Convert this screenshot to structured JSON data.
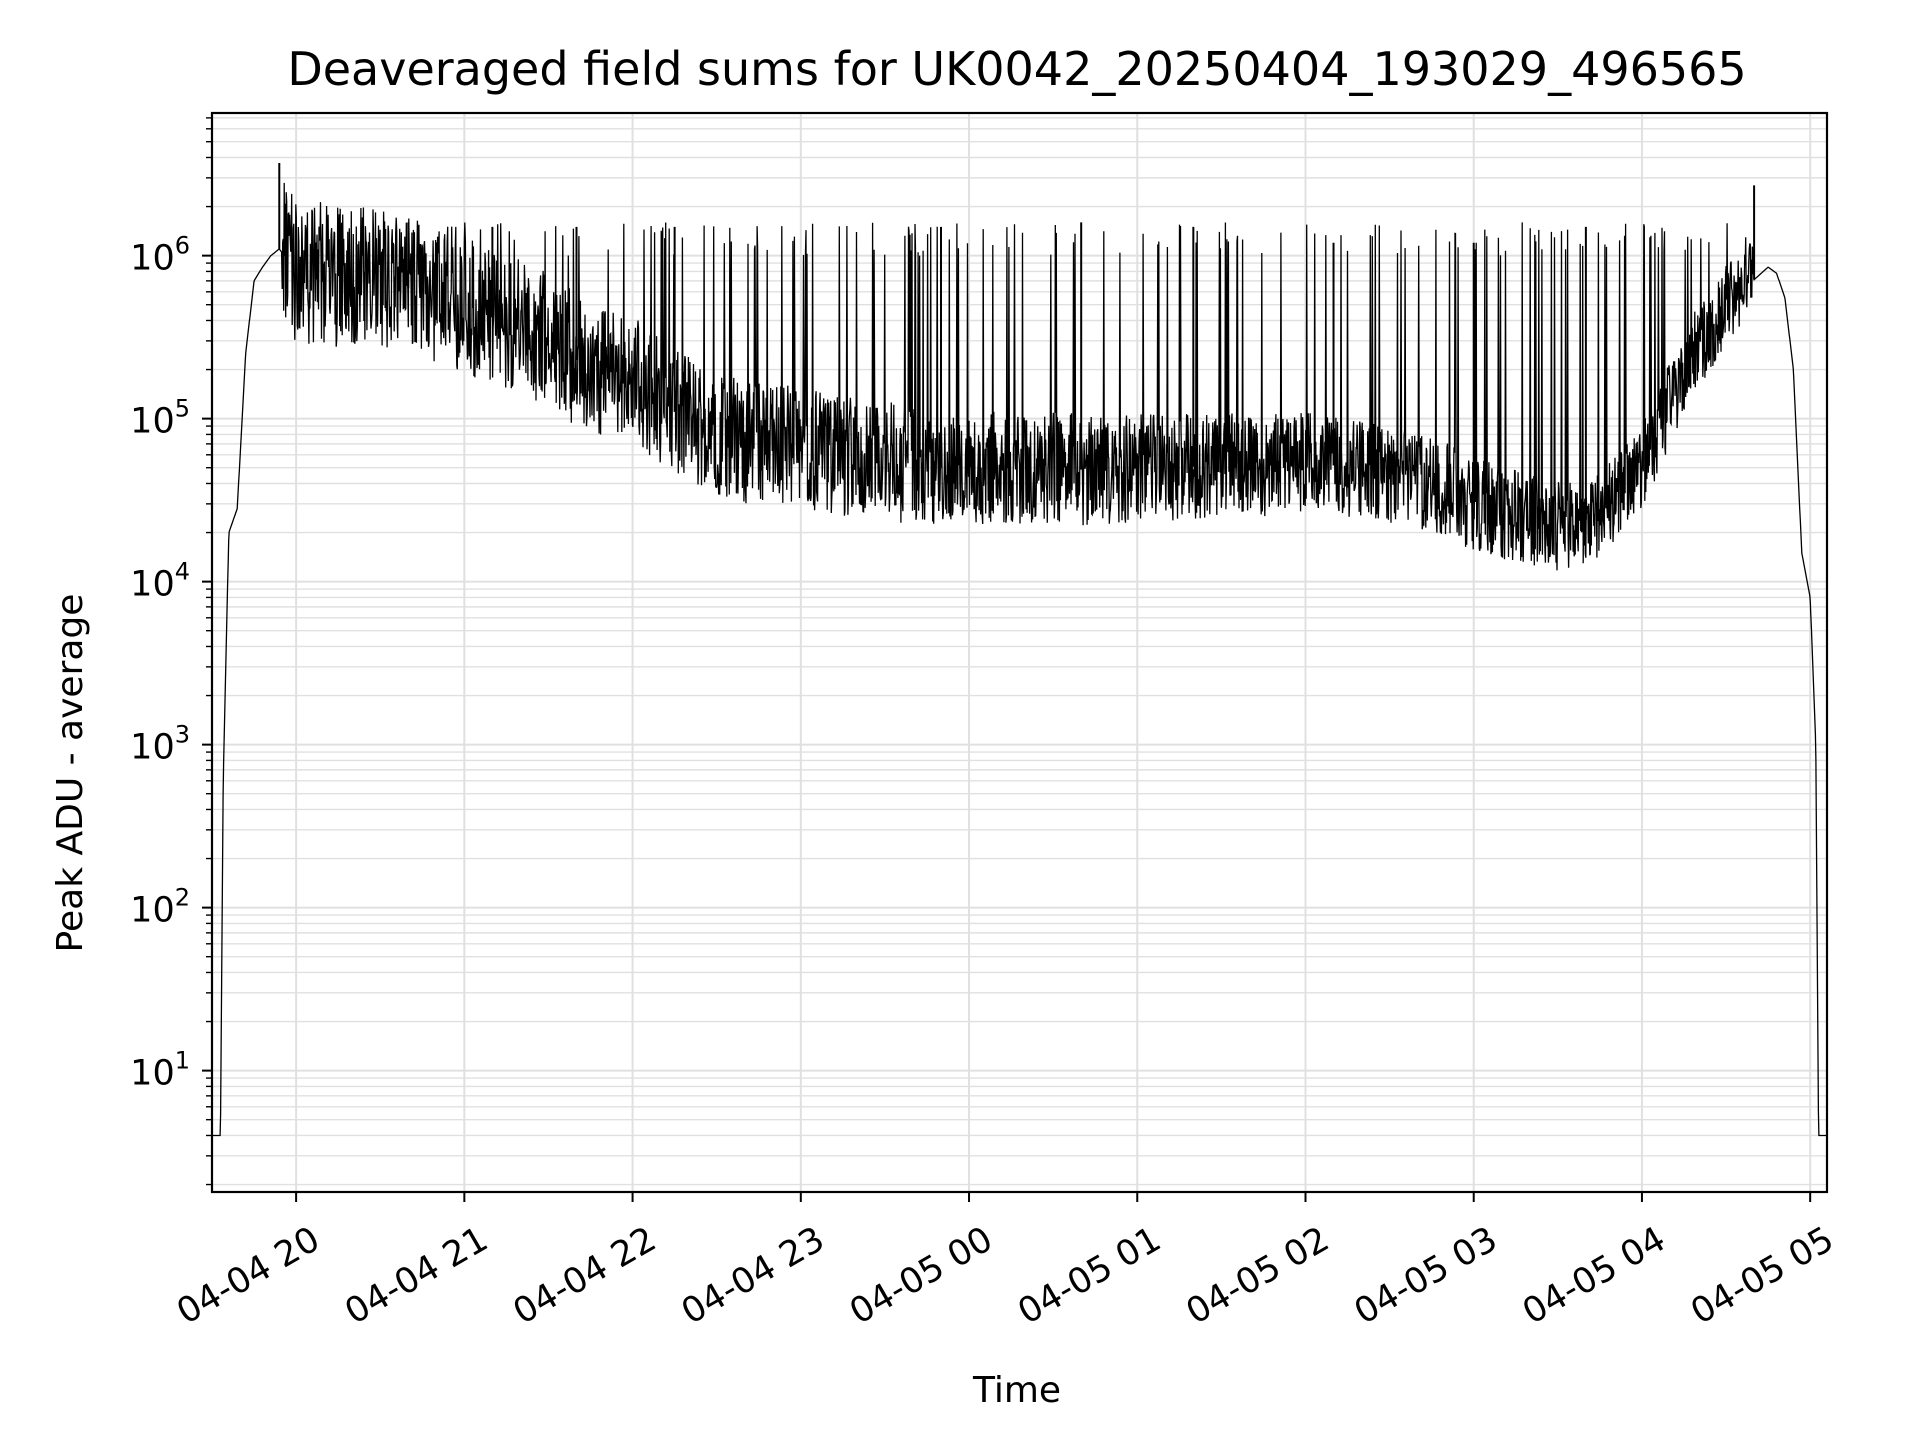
{
  "chart_data": {
    "type": "line",
    "title": "Deaveraged field sums for UK0042_20250404_193029_496565",
    "xlabel": "Time",
    "ylabel": "Peak ADU - average",
    "yscale": "log",
    "ylim": [
      1.8,
      7500000
    ],
    "xlim": [
      "2025-04-04 19:30",
      "2025-04-05 05:06"
    ],
    "grid": true,
    "line_color": "#000000",
    "grid_color": "#e0e0e0",
    "x_ticks": [
      "04-04 20",
      "04-04 21",
      "04-04 22",
      "04-04 23",
      "04-05 00",
      "04-05 01",
      "04-05 02",
      "04-05 03",
      "04-05 04",
      "04-05 05"
    ],
    "y_ticks": [
      {
        "base": "10",
        "exp": "1",
        "value": 10
      },
      {
        "base": "10",
        "exp": "2",
        "value": 100
      },
      {
        "base": "10",
        "exp": "3",
        "value": 1000
      },
      {
        "base": "10",
        "exp": "4",
        "value": 10000
      },
      {
        "base": "10",
        "exp": "5",
        "value": 100000
      },
      {
        "base": "10",
        "exp": "6",
        "value": 1000000
      }
    ],
    "series": [
      {
        "x": [
          "2025-04-04 19:30",
          "2025-04-04 19:33",
          "2025-04-04 19:34",
          "2025-04-04 19:36",
          "2025-04-04 19:39",
          "2025-04-04 19:42",
          "2025-04-04 19:45",
          "2025-04-04 19:48",
          "2025-04-04 19:51",
          "2025-04-04 19:54",
          "2025-04-04 20:00",
          "2025-04-04 20:15",
          "2025-04-04 20:30",
          "2025-04-04 20:45",
          "2025-04-04 21:00",
          "2025-04-04 21:15",
          "2025-04-04 21:30",
          "2025-04-04 21:45",
          "2025-04-04 22:00",
          "2025-04-04 22:15",
          "2025-04-04 22:30",
          "2025-04-04 22:45",
          "2025-04-04 23:00",
          "2025-04-04 23:15",
          "2025-04-04 23:30",
          "2025-04-04 23:45",
          "2025-04-05 00:00",
          "2025-04-05 00:15",
          "2025-04-05 00:30",
          "2025-04-05 00:45",
          "2025-04-05 01:00",
          "2025-04-05 01:15",
          "2025-04-05 01:30",
          "2025-04-05 01:45",
          "2025-04-05 02:00",
          "2025-04-05 02:15",
          "2025-04-05 02:30",
          "2025-04-05 02:45",
          "2025-04-05 03:00",
          "2025-04-05 03:15",
          "2025-04-05 03:30",
          "2025-04-05 03:45",
          "2025-04-05 04:00",
          "2025-04-05 04:15",
          "2025-04-05 04:30",
          "2025-04-05 04:45",
          "2025-04-05 04:48",
          "2025-04-05 04:51",
          "2025-04-05 04:54",
          "2025-04-05 04:57",
          "2025-04-05 05:00",
          "2025-04-05 05:02",
          "2025-04-05 05:03",
          "2025-04-05 05:06"
        ],
        "y": [
          4,
          4,
          600,
          20000,
          28000,
          250000,
          700000,
          850000,
          1000000,
          1100000,
          800000,
          750000,
          700000,
          600000,
          500000,
          400000,
          300000,
          200000,
          180000,
          110000,
          80000,
          70000,
          65000,
          60000,
          55000,
          50000,
          50000,
          50000,
          50000,
          48000,
          50000,
          50000,
          52000,
          52000,
          55000,
          50000,
          45000,
          40000,
          30000,
          25000,
          22000,
          25000,
          50000,
          200000,
          500000,
          850000,
          780000,
          550000,
          200000,
          15000,
          8000,
          1000,
          4,
          4
        ]
      }
    ],
    "spikes": [
      {
        "x": "2025-04-04 19:54",
        "y": 3700000
      },
      {
        "x": "2025-04-04 20:15",
        "y": 1700000
      },
      {
        "x": "2025-04-04 20:40",
        "y": 1600000
      },
      {
        "x": "2025-04-04 21:10",
        "y": 1500000
      },
      {
        "x": "2025-04-04 21:40",
        "y": 1500000
      },
      {
        "x": "2025-04-04 22:15",
        "y": 1500000
      },
      {
        "x": "2025-04-04 23:50",
        "y": 1500000
      },
      {
        "x": "2025-04-05 00:40",
        "y": 1600000
      },
      {
        "x": "2025-04-05 01:20",
        "y": 1500000
      },
      {
        "x": "2025-04-05 02:10",
        "y": 1200000
      },
      {
        "x": "2025-04-05 03:00",
        "y": 1200000
      },
      {
        "x": "2025-04-05 03:40",
        "y": 1500000
      },
      {
        "x": "2025-04-05 04:40",
        "y": 2700000
      }
    ]
  }
}
